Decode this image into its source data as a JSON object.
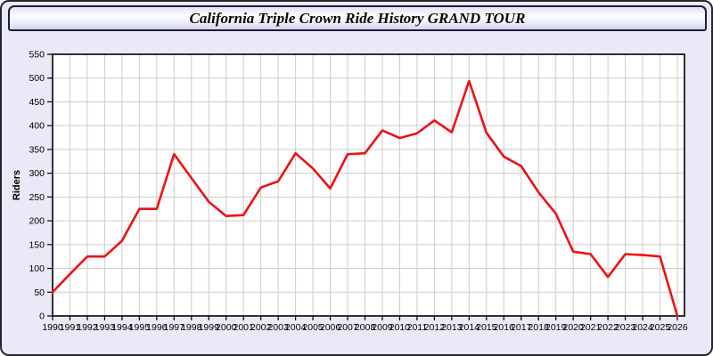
{
  "window": {
    "title": "California Triple Crown Ride History GRAND TOUR"
  },
  "chart_data": {
    "type": "line",
    "title": "California Triple Crown Ride History GRAND TOUR",
    "xlabel": "",
    "ylabel": "Riders",
    "ylim": [
      0,
      550
    ],
    "yticks": [
      0,
      50,
      100,
      150,
      200,
      250,
      300,
      350,
      400,
      450,
      500,
      550
    ],
    "grid": true,
    "legend_position": "none",
    "categories": [
      1990,
      1991,
      1992,
      1993,
      1994,
      1995,
      1996,
      1997,
      1998,
      1999,
      2000,
      2001,
      2002,
      2003,
      2004,
      2005,
      2006,
      2007,
      2008,
      2009,
      2010,
      2011,
      2012,
      2013,
      2014,
      2015,
      2016,
      2017,
      2018,
      2019,
      2020,
      2021,
      2022,
      2023,
      2024,
      2025,
      2026
    ],
    "series": [
      {
        "name": "Riders",
        "color": "#ee1111",
        "values": [
          50,
          88,
          125,
          125,
          158,
          225,
          225,
          340,
          290,
          240,
          210,
          212,
          270,
          283,
          342,
          310,
          268,
          340,
          342,
          390,
          374,
          384,
          411,
          386,
          494,
          385,
          335,
          315,
          260,
          215,
          135,
          130,
          82,
          130,
          128,
          125,
          0
        ]
      }
    ]
  },
  "colors": {
    "window_background": "#e9e9f7",
    "plot_background": "#ffffff",
    "gridline": "#cccccc",
    "axis_frame": "#000000",
    "line": "#ee1111",
    "tick_text": "#000000"
  }
}
